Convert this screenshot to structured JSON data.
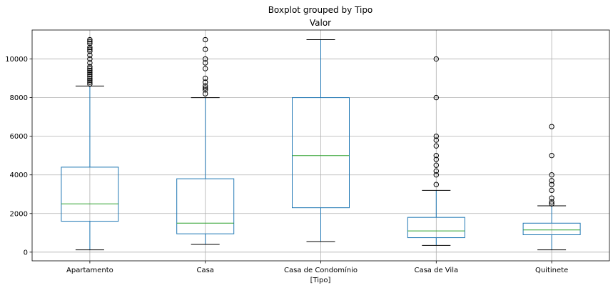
{
  "chart_data": {
    "type": "boxplot",
    "suptitle": "Boxplot grouped by Tipo",
    "title": "Valor",
    "xlabel": "[Tipo]",
    "ylabel": "",
    "ylim": [
      -450,
      11500
    ],
    "yticks": [
      0,
      2000,
      4000,
      6000,
      8000,
      10000
    ],
    "grid": true,
    "colors": {
      "box": "#1f77b4",
      "median": "#2ca02c",
      "whisker": "#1f77b4",
      "cap": "#000000",
      "flier": "#000000",
      "grid": "#b0b0b0"
    },
    "categories": [
      "Apartamento",
      "Casa",
      "Casa de Condomínio",
      "Casa de Vila",
      "Quitinete"
    ],
    "boxes": [
      {
        "whislo": 120,
        "q1": 1600,
        "med": 2500,
        "q3": 4400,
        "whishi": 8600,
        "fliers": [
          8700,
          8800,
          8900,
          9000,
          9100,
          9200,
          9300,
          9400,
          9500,
          9600,
          9800,
          10000,
          10200,
          10400,
          10500,
          10600,
          10800,
          10900,
          11000
        ]
      },
      {
        "whislo": 400,
        "q1": 950,
        "med": 1500,
        "q3": 3800,
        "whishi": 8000,
        "fliers": [
          8200,
          8400,
          8500,
          8600,
          8800,
          9000,
          9500,
          9800,
          10000,
          10500,
          11000
        ]
      },
      {
        "whislo": 550,
        "q1": 2300,
        "med": 5000,
        "q3": 8000,
        "whishi": 11000,
        "fliers": []
      },
      {
        "whislo": 350,
        "q1": 750,
        "med": 1100,
        "q3": 1800,
        "whishi": 3200,
        "fliers": [
          3500,
          4000,
          4200,
          4500,
          4800,
          5000,
          5500,
          5800,
          6000,
          8000,
          10000
        ]
      },
      {
        "whislo": 120,
        "q1": 900,
        "med": 1150,
        "q3": 1500,
        "whishi": 2400,
        "fliers": [
          2500,
          2600,
          2800,
          3200,
          3500,
          3700,
          4000,
          5000,
          6500
        ]
      }
    ]
  }
}
